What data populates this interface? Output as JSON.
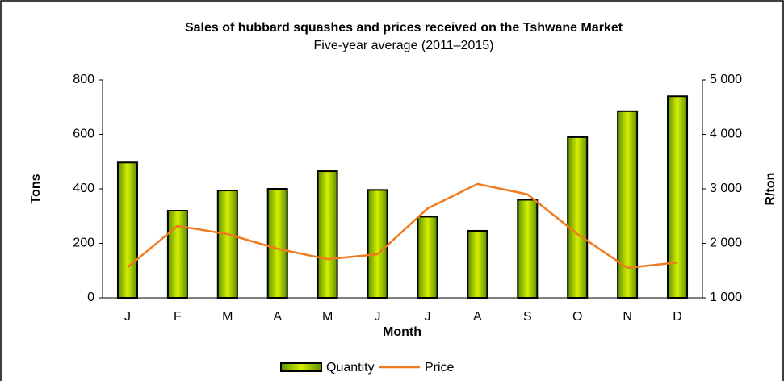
{
  "chart_data": {
    "type": "bar_line",
    "title": "Sales of hubbard squashes and prices received on the Tshwane  Market",
    "subtitle": "Five-year average (2011–2015)",
    "x_label": "Month",
    "y_label": "Tons",
    "y2_label": "R/ton",
    "categories": [
      "J",
      "F",
      "M",
      "A",
      "M",
      "J",
      "J",
      "A",
      "S",
      "O",
      "N",
      "D"
    ],
    "series": [
      {
        "name": "Quantity",
        "type": "bar",
        "color": "#d4f000",
        "values": [
          497,
          320,
          394,
          400,
          465,
          396,
          298,
          246,
          360,
          590,
          685,
          740
        ]
      },
      {
        "name": "Price",
        "type": "line",
        "axis": "y2",
        "color": "#f07a1e",
        "values": [
          1560,
          2320,
          2170,
          1900,
          1710,
          1800,
          2640,
          3090,
          2900,
          2170,
          1550,
          1650
        ]
      }
    ],
    "ylim": [
      0,
      800
    ],
    "yticks": [
      0,
      200,
      400,
      600,
      800
    ],
    "y2lim": [
      1000,
      5000
    ],
    "y2ticks": [
      {
        "value": 1000,
        "label": "1 000"
      },
      {
        "value": 2000,
        "label": "2 000"
      },
      {
        "value": 3000,
        "label": "3 000"
      },
      {
        "value": 4000,
        "label": "4 000"
      },
      {
        "value": 5000,
        "label": "5 000"
      }
    ],
    "legend": "bottom"
  }
}
